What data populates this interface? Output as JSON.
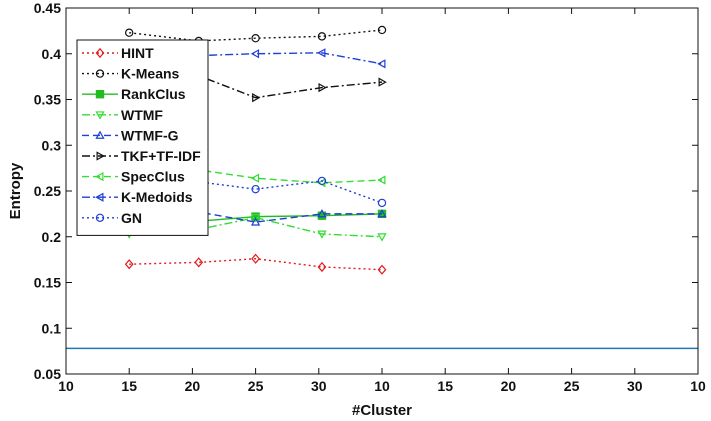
{
  "chart_data": {
    "type": "line",
    "title": "",
    "xlabel": "#Cluster",
    "ylabel": "Entropy",
    "x_tick_labels": [
      "10",
      "15",
      "20",
      "25",
      "30",
      "10",
      "15",
      "20",
      "25",
      "30",
      "10"
    ],
    "x_points": [
      1,
      2.1,
      3,
      4.05,
      5
    ],
    "ylim": [
      0.05,
      0.45
    ],
    "y_ticks": [
      0.05,
      0.1,
      0.15,
      0.2,
      0.25,
      0.3,
      0.35,
      0.4,
      0.45
    ],
    "y_tick_labels": [
      "0.05",
      "0.1",
      "0.15",
      "0.2",
      "0.25",
      "0.3",
      "0.35",
      "0.4",
      "0.45"
    ],
    "legend_position": "top-left",
    "series": [
      {
        "name": "HINT",
        "color": "#e31a1c",
        "dash": "dot",
        "marker": "diamond",
        "values": [
          0.17,
          0.172,
          0.176,
          0.167,
          0.164
        ]
      },
      {
        "name": "K-Means",
        "color": "#111111",
        "dash": "dot",
        "marker": "circle",
        "values": [
          0.423,
          0.414,
          0.417,
          0.419,
          0.426
        ]
      },
      {
        "name": "RankClus",
        "color": "#22bb22",
        "dash": "solid",
        "marker": "square",
        "values": [
          0.207,
          0.217,
          0.222,
          0.223,
          0.225
        ]
      },
      {
        "name": "WTMF",
        "color": "#33dd33",
        "dash": "dashdot",
        "marker": "triangle-down",
        "values": [
          0.203,
          0.208,
          0.221,
          0.203,
          0.2
        ]
      },
      {
        "name": "WTMF-G",
        "color": "#1f3fd8",
        "dash": "dash",
        "marker": "triangle-up",
        "values": [
          0.207,
          0.227,
          0.216,
          0.225,
          0.225
        ]
      },
      {
        "name": "TKF+TF-IDF",
        "color": "#111111",
        "dash": "dashdot",
        "marker": "triangle-right",
        "values": [
          0.36,
          0.376,
          0.352,
          0.363,
          0.369
        ]
      },
      {
        "name": "SpecClus",
        "color": "#33dd33",
        "dash": "dash",
        "marker": "triangle-left",
        "values": [
          0.255,
          0.273,
          0.264,
          0.259,
          0.262
        ]
      },
      {
        "name": "K-Medoids",
        "color": "#1f3fd8",
        "dash": "dashdot",
        "marker": "triangle-left",
        "values": [
          0.4,
          0.398,
          0.4,
          0.401,
          0.389
        ]
      },
      {
        "name": "GN",
        "color": "#1f3fd8",
        "dash": "dot",
        "marker": "circle",
        "values": [
          0.241,
          0.26,
          0.252,
          0.261,
          0.237
        ]
      },
      {
        "name": "",
        "color": "#1f77b4",
        "dash": "solid",
        "marker": "none",
        "values": [
          0.078,
          0.078,
          0.078,
          0.078,
          0.078
        ]
      }
    ]
  }
}
